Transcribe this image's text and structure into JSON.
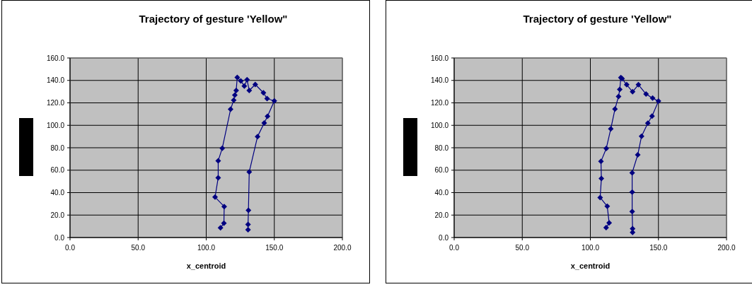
{
  "chart_data": [
    {
      "type": "line",
      "title": "Trajectory of gesture 'Yellow\"",
      "xlabel": "x_centroid",
      "xlim": [
        0,
        200
      ],
      "xticks": [
        {
          "value": 0,
          "label": "0.0"
        },
        {
          "value": 50,
          "label": "50.0"
        },
        {
          "value": 100,
          "label": "100.0"
        },
        {
          "value": 150,
          "label": "150.0"
        },
        {
          "value": 200,
          "label": "200.0"
        }
      ],
      "ylim": [
        0,
        160
      ],
      "yticks": [
        {
          "value": 0,
          "label": "0.0"
        },
        {
          "value": 20,
          "label": "20.0"
        },
        {
          "value": 40,
          "label": "40.0"
        },
        {
          "value": 60,
          "label": "60.0"
        },
        {
          "value": 80,
          "label": "80.0"
        },
        {
          "value": 100,
          "label": "100.0"
        },
        {
          "value": 120,
          "label": "120.0"
        },
        {
          "value": 140,
          "label": "140.0"
        },
        {
          "value": 160,
          "label": "160.0"
        }
      ],
      "grid": true,
      "marker": "diamond",
      "series": [
        {
          "color": "#000080",
          "x": [
            130.7,
            130.7,
            131,
            131.6,
            137.7,
            142.6,
            145,
            150,
            144.7,
            142,
            136,
            131.6,
            130,
            128,
            125.4,
            122.8,
            122,
            121,
            120.2,
            117.9,
            111.8,
            108.8,
            108.8,
            106.5,
            113.2,
            113,
            110.5
          ],
          "values": [
            7,
            11.6,
            24.2,
            58.5,
            90,
            102,
            108,
            121.7,
            123.8,
            129,
            136.4,
            131,
            140.6,
            135,
            139.6,
            142.7,
            131,
            127,
            122.3,
            114.3,
            79.6,
            68.4,
            53.3,
            36,
            27.6,
            12.8,
            8.6
          ]
        }
      ]
    },
    {
      "type": "line",
      "title": "Trajectory of gesture 'Yellow\"",
      "xlabel": "x_centroid",
      "xlim": [
        0,
        200
      ],
      "xticks": [
        {
          "value": 0,
          "label": "0.0"
        },
        {
          "value": 50,
          "label": "50.0"
        },
        {
          "value": 100,
          "label": "100.0"
        },
        {
          "value": 150,
          "label": "150.0"
        },
        {
          "value": 200,
          "label": "200.0"
        }
      ],
      "ylim": [
        0,
        160
      ],
      "yticks": [
        {
          "value": 0,
          "label": "0.0"
        },
        {
          "value": 20,
          "label": "20.0"
        },
        {
          "value": 40,
          "label": "40.0"
        },
        {
          "value": 60,
          "label": "60.0"
        },
        {
          "value": 80,
          "label": "80.0"
        },
        {
          "value": 100,
          "label": "100.0"
        },
        {
          "value": 120,
          "label": "120.0"
        },
        {
          "value": 140,
          "label": "140.0"
        },
        {
          "value": 160,
          "label": "160.0"
        }
      ],
      "grid": true,
      "marker": "diamond",
      "series": [
        {
          "color": "#000080",
          "x": [
            131,
            131,
            130.7,
            130.7,
            130.7,
            134.8,
            137.6,
            142.2,
            145.3,
            150,
            145.7,
            140.9,
            135.3,
            131,
            126.7,
            123.3,
            122.4,
            121.6,
            120.7,
            118.1,
            115,
            111.7,
            107.8,
            108.1,
            107.2,
            112.4,
            113.8,
            111.6
          ],
          "values": [
            4.6,
            7.8,
            23.2,
            40.4,
            57.7,
            73.7,
            90.3,
            101.9,
            108.2,
            121.5,
            124.2,
            127.8,
            136.2,
            129.9,
            136.2,
            141.5,
            142.5,
            132,
            125.7,
            114.5,
            96.8,
            79.4,
            67.8,
            52.6,
            35.6,
            27.8,
            13,
            8.8
          ]
        }
      ]
    }
  ]
}
